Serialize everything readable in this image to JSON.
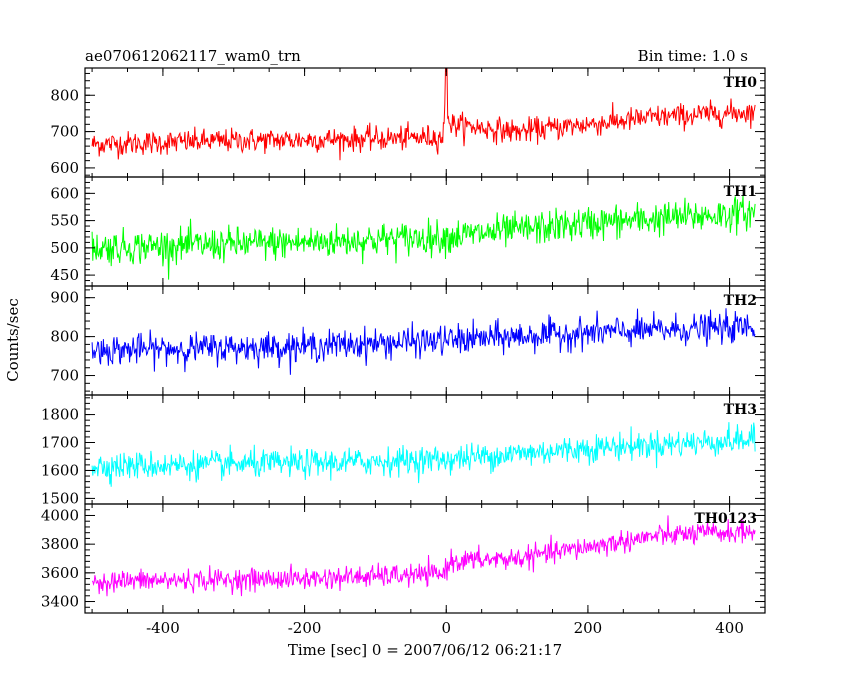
{
  "chart_data": {
    "type": "line",
    "title_left": "ae070612062117_wam0_trn",
    "title_right": "Bin time: 1.0 s",
    "xlabel": "Time [sec] 0 = 2007/06/12 06:21:17",
    "ylabel": "Counts/sec",
    "xlim": [
      -510,
      450
    ],
    "x_ticks": [
      -400,
      -200,
      0,
      200,
      400
    ],
    "x_range_data": [
      -500,
      436
    ],
    "grid": false,
    "panels": [
      {
        "name": "TH0",
        "color": "#ff0000",
        "ylim": [
          575,
          875
        ],
        "y_ticks": [
          600,
          700,
          800
        ],
        "trend": [
          [
            -500,
            665
          ],
          [
            -300,
            675
          ],
          [
            -100,
            680
          ],
          [
            -5,
            685
          ],
          [
            0,
            790
          ],
          [
            5,
            720
          ],
          [
            100,
            700
          ],
          [
            200,
            720
          ],
          [
            300,
            740
          ],
          [
            436,
            755
          ]
        ],
        "noise_amplitude": 30,
        "spike": {
          "x": 0,
          "y": 875
        }
      },
      {
        "name": "TH1",
        "color": "#00ff00",
        "ylim": [
          430,
          630
        ],
        "y_ticks": [
          450,
          500,
          550,
          600
        ],
        "trend": [
          [
            -500,
            500
          ],
          [
            -200,
            510
          ],
          [
            0,
            520
          ],
          [
            200,
            545
          ],
          [
            436,
            565
          ]
        ],
        "noise_amplitude": 28
      },
      {
        "name": "TH2",
        "color": "#0000ff",
        "ylim": [
          650,
          930
        ],
        "y_ticks": [
          700,
          800,
          900
        ],
        "trend": [
          [
            -500,
            765
          ],
          [
            -200,
            775
          ],
          [
            0,
            790
          ],
          [
            200,
            810
          ],
          [
            436,
            825
          ]
        ],
        "noise_amplitude": 35
      },
      {
        "name": "TH3",
        "color": "#00ffff",
        "ylim": [
          1480,
          1870
        ],
        "y_ticks": [
          1500,
          1600,
          1700,
          1800
        ],
        "trend": [
          [
            -500,
            1615
          ],
          [
            -200,
            1625
          ],
          [
            0,
            1640
          ],
          [
            200,
            1680
          ],
          [
            436,
            1710
          ]
        ],
        "noise_amplitude": 45
      },
      {
        "name": "TH0123",
        "color": "#ff00ff",
        "ylim": [
          3320,
          4080
        ],
        "y_ticks": [
          3400,
          3600,
          3800,
          4000
        ],
        "trend": [
          [
            -500,
            3540
          ],
          [
            -200,
            3560
          ],
          [
            -5,
            3590
          ],
          [
            5,
            3680
          ],
          [
            100,
            3700
          ],
          [
            200,
            3780
          ],
          [
            300,
            3860
          ],
          [
            436,
            3890
          ]
        ],
        "noise_amplitude": 70
      }
    ]
  }
}
